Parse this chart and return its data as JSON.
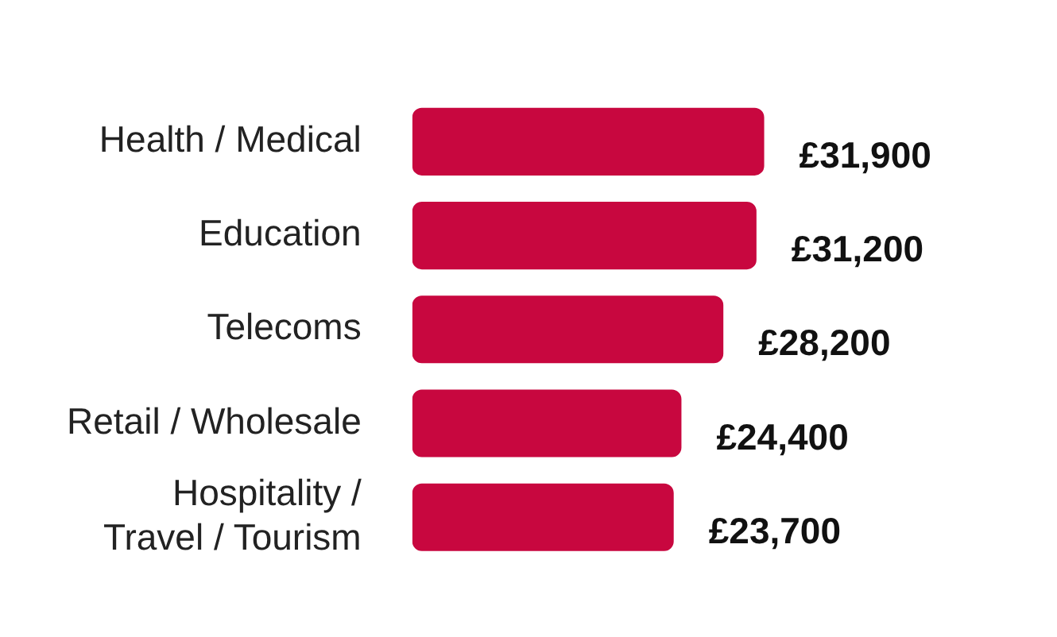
{
  "chart_data": {
    "type": "bar",
    "orientation": "horizontal",
    "categories": [
      "Health / Medical",
      "Education",
      "Telecoms",
      "Retail / Wholesale",
      "Hospitality / Travel / Tourism"
    ],
    "values": [
      31900,
      31200,
      28200,
      24400,
      23700
    ],
    "value_labels": [
      "£31,900",
      "£31,200",
      "£28,200",
      "£24,400",
      "£23,700"
    ],
    "color": "#c8073f",
    "legend": false,
    "tick_labels": "y"
  }
}
